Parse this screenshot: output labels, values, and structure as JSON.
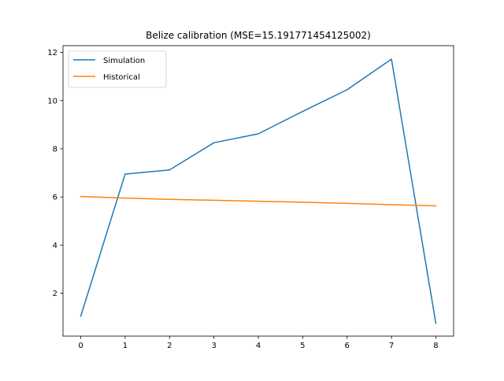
{
  "chart_data": {
    "type": "line",
    "title": "Belize calibration (MSE=15.191771454125002)",
    "xlabel": "",
    "ylabel": "",
    "x": [
      0,
      1,
      2,
      3,
      4,
      5,
      6,
      7,
      8
    ],
    "xlim": [
      -0.4,
      8.4
    ],
    "ylim": [
      0.22,
      12.28
    ],
    "xticks": [
      "0",
      "1",
      "2",
      "3",
      "4",
      "5",
      "6",
      "7",
      "8"
    ],
    "yticks": [
      "2",
      "4",
      "6",
      "8",
      "10",
      "12"
    ],
    "grid": false,
    "legend_position": "top-left",
    "series": [
      {
        "name": "Simulation",
        "color": "#1f77b4",
        "values": [
          1.05,
          6.95,
          7.12,
          8.25,
          8.62,
          9.55,
          10.45,
          11.72,
          0.75
        ]
      },
      {
        "name": "Historical",
        "color": "#ff7f0e",
        "values": [
          6.02,
          5.95,
          5.9,
          5.86,
          5.82,
          5.78,
          5.73,
          5.68,
          5.63
        ]
      }
    ]
  }
}
